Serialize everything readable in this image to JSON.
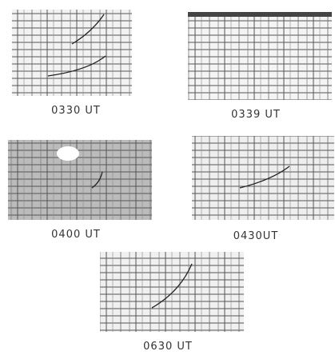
{
  "panels": [
    {
      "label": "0330 UT"
    },
    {
      "label": "0339 UT"
    },
    {
      "label": "0400 UT"
    },
    {
      "label": "0430UT"
    },
    {
      "label": "0630 UT"
    }
  ]
}
